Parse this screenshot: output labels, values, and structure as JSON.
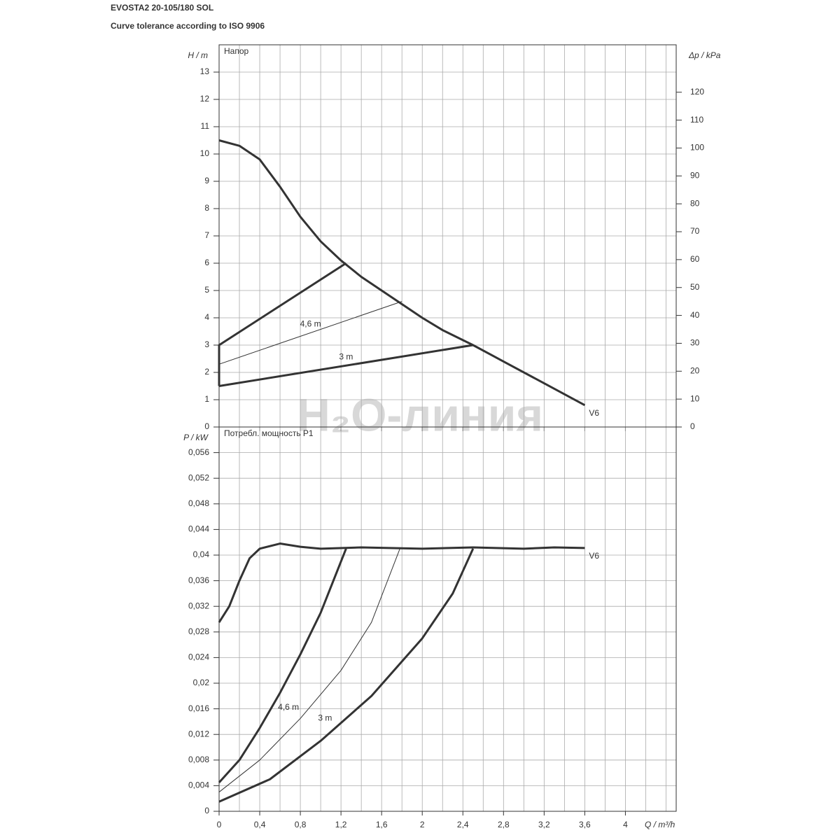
{
  "title": "EVOSTA2 20-105/180 SOL",
  "subtitle": "Curve tolerance according to ISO 9906",
  "watermark": "H₂O-линия",
  "chart_data": [
    {
      "type": "line",
      "panel_label": "Напор",
      "ylabel": "H / m",
      "y2label": "Δp / kPa",
      "xlim": [
        0,
        4.5
      ],
      "xticks": [
        0,
        0.4,
        0.8,
        1.2,
        1.6,
        2,
        2.4,
        2.8,
        3.2,
        3.6,
        4
      ],
      "xminorticks": [
        0.2,
        0.6,
        1.0,
        1.4,
        1.8,
        2.2,
        2.6,
        3.0,
        3.4,
        3.8,
        4.2,
        4.4
      ],
      "ylim": [
        0,
        14
      ],
      "yticks": [
        0,
        1,
        2,
        3,
        4,
        5,
        6,
        7,
        8,
        9,
        10,
        11,
        12,
        13
      ],
      "y2lim": [
        0,
        137
      ],
      "y2ticks": [
        0,
        10,
        20,
        30,
        40,
        50,
        60,
        70,
        80,
        90,
        100,
        110,
        120
      ],
      "grid": true,
      "color": "#333333",
      "series": [
        {
          "name": "V6",
          "label_at": "end",
          "linewidth": 3,
          "x": [
            0,
            0.2,
            0.4,
            0.6,
            0.8,
            1.0,
            1.2,
            1.4,
            1.6,
            1.8,
            2.0,
            2.2,
            2.5,
            2.8,
            3.2,
            3.6
          ],
          "values": [
            10.5,
            10.3,
            9.8,
            8.8,
            7.7,
            6.8,
            6.1,
            5.5,
            5.0,
            4.5,
            4.0,
            3.55,
            3.0,
            2.4,
            1.6,
            0.8
          ]
        },
        {
          "linewidth": 3,
          "x": [
            0,
            0,
            1.25
          ],
          "values": [
            1.5,
            3,
            6
          ]
        },
        {
          "name": "4,6 m",
          "label_at": "middle",
          "linewidth": 1,
          "x": [
            0,
            1.8
          ],
          "values": [
            2.3,
            4.6
          ]
        },
        {
          "name": "3 m",
          "label_at": "middle",
          "linewidth": 3,
          "x": [
            0,
            2.5
          ],
          "values": [
            1.5,
            3
          ]
        }
      ]
    },
    {
      "type": "line",
      "panel_label": "Потребл. мощность P1",
      "ylabel": "P / kW",
      "xlabel": "Q / m³/h",
      "xlim": [
        0,
        4.5
      ],
      "xticks": [
        0,
        {
          "value": 0.4,
          "label": "0,4"
        },
        {
          "value": 0.8,
          "label": "0,8"
        },
        {
          "value": 1.2,
          "label": "1,2"
        },
        {
          "value": 1.6,
          "label": "1,6"
        },
        2,
        {
          "value": 2.4,
          "label": "2,4"
        },
        {
          "value": 2.8,
          "label": "2,8"
        },
        {
          "value": 3.2,
          "label": "3,2"
        },
        {
          "value": 3.6,
          "label": "3,6"
        },
        4
      ],
      "xminorticks": [
        0.2,
        0.6,
        1.0,
        1.4,
        1.8,
        2.2,
        2.6,
        3.0,
        3.4,
        3.8,
        4.2,
        4.4
      ],
      "ylim": [
        0,
        0.06
      ],
      "yticks": [
        0,
        {
          "value": 0.004,
          "label": "0,004"
        },
        {
          "value": 0.008,
          "label": "0,008"
        },
        {
          "value": 0.012,
          "label": "0,012"
        },
        {
          "value": 0.016,
          "label": "0,016"
        },
        {
          "value": 0.02,
          "label": "0,02"
        },
        {
          "value": 0.024,
          "label": "0,024"
        },
        {
          "value": 0.028,
          "label": "0,028"
        },
        {
          "value": 0.032,
          "label": "0,032"
        },
        {
          "value": 0.036,
          "label": "0,036"
        },
        {
          "value": 0.04,
          "label": "0,04"
        },
        {
          "value": 0.044,
          "label": "0,044"
        },
        {
          "value": 0.048,
          "label": "0,048"
        },
        {
          "value": 0.052,
          "label": "0,052"
        },
        {
          "value": 0.056,
          "label": "0,056"
        }
      ],
      "grid": true,
      "color": "#333333",
      "series": [
        {
          "name": "V6",
          "label_at": "end",
          "linewidth": 3,
          "x": [
            0,
            0.1,
            0.2,
            0.3,
            0.4,
            0.6,
            0.8,
            1.0,
            1.4,
            2.0,
            2.5,
            3.0,
            3.3,
            3.6
          ],
          "values": [
            0.0295,
            0.032,
            0.036,
            0.0395,
            0.041,
            0.0418,
            0.0413,
            0.041,
            0.0412,
            0.041,
            0.0412,
            0.041,
            0.0412,
            0.0411
          ]
        },
        {
          "linewidth": 3,
          "x": [
            0,
            0.2,
            0.4,
            0.6,
            0.8,
            1.0,
            1.25
          ],
          "values": [
            0.0045,
            0.008,
            0.013,
            0.0185,
            0.0245,
            0.031,
            0.041
          ]
        },
        {
          "name": "4,6 m",
          "label_at": "middle",
          "linewidth": 1,
          "x": [
            0,
            0.4,
            0.8,
            1.2,
            1.5,
            1.78
          ],
          "values": [
            0.003,
            0.008,
            0.0145,
            0.022,
            0.0295,
            0.041
          ]
        },
        {
          "name": "3 m",
          "label_at": "middle",
          "linewidth": 3,
          "x": [
            0,
            0.5,
            1.0,
            1.5,
            2.0,
            2.3,
            2.5
          ],
          "values": [
            0.0015,
            0.005,
            0.011,
            0.018,
            0.027,
            0.034,
            0.041
          ]
        }
      ]
    }
  ]
}
